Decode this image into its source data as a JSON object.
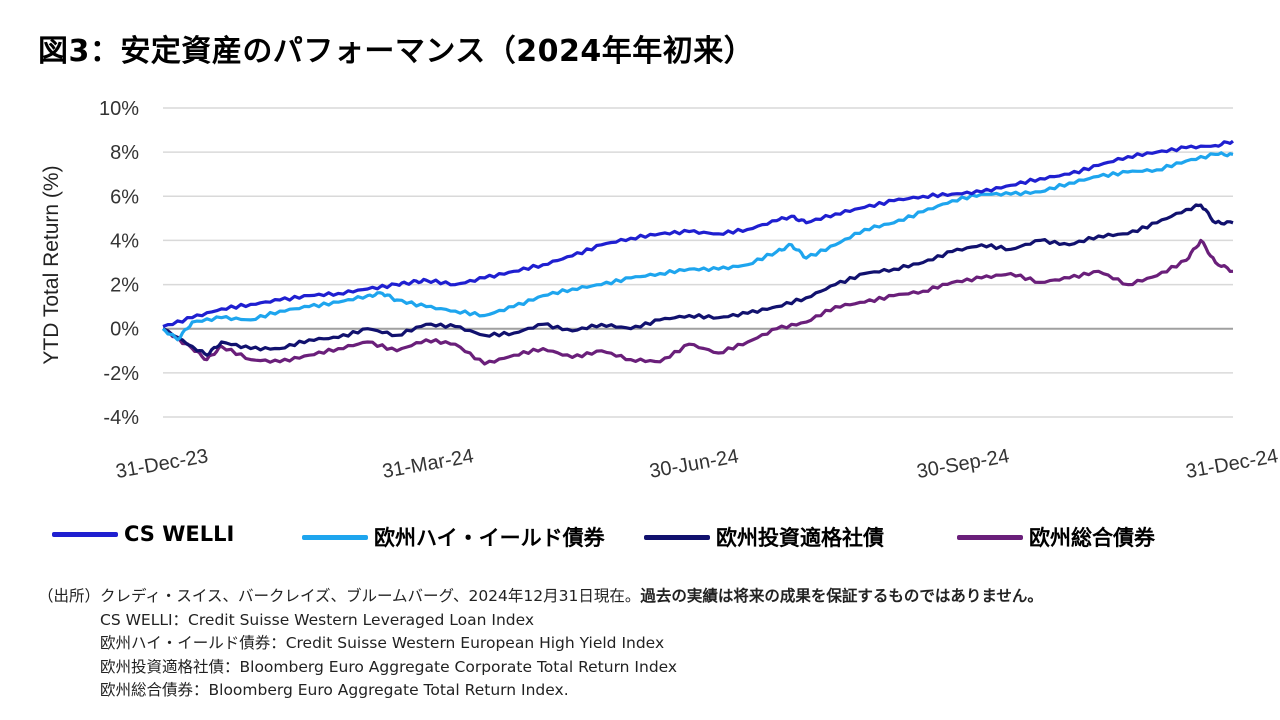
{
  "title": "図3：安定資産のパフォーマンス（2024年年初来）",
  "chart_data": {
    "type": "line",
    "ylabel": "YTD Total Return (%)",
    "y_ticks": [
      "10%",
      "8%",
      "6%",
      "4%",
      "2%",
      "0%",
      "-2%",
      "-4%"
    ],
    "y_tick_values": [
      10,
      8,
      6,
      4,
      2,
      0,
      -2,
      -4
    ],
    "ylim": [
      -4,
      10
    ],
    "x_ticks": [
      "31-Dec-23",
      "31-Mar-24",
      "30-Jun-24",
      "30-Sep-24",
      "31-Dec-24"
    ],
    "x_tick_days": [
      0,
      91,
      182,
      274,
      366
    ],
    "xlim_days": [
      0,
      366
    ],
    "grid": "horizontal",
    "legend_position": "bottom",
    "series": [
      {
        "name": "CS WELLI",
        "color": "#1f1fd0",
        "x": [
          0,
          10,
          20,
          30,
          40,
          50,
          60,
          70,
          80,
          85,
          90,
          100,
          110,
          120,
          130,
          140,
          150,
          160,
          170,
          180,
          190,
          200,
          210,
          215,
          220,
          230,
          240,
          250,
          260,
          270,
          280,
          290,
          300,
          310,
          320,
          330,
          340,
          350,
          360,
          366
        ],
        "y": [
          0.1,
          0.5,
          0.9,
          1.1,
          1.3,
          1.5,
          1.6,
          1.8,
          2.0,
          2.1,
          2.2,
          2.0,
          2.3,
          2.6,
          2.9,
          3.3,
          3.8,
          4.1,
          4.3,
          4.4,
          4.3,
          4.5,
          4.9,
          5.1,
          4.8,
          5.2,
          5.5,
          5.8,
          6.0,
          6.1,
          6.2,
          6.5,
          6.8,
          7.0,
          7.4,
          7.8,
          8.0,
          8.2,
          8.3,
          8.5
        ]
      },
      {
        "name": "欧州ハイ・イールド債券",
        "color": "#1ea5ee",
        "x": [
          0,
          5,
          10,
          20,
          30,
          40,
          50,
          60,
          70,
          75,
          80,
          90,
          100,
          110,
          120,
          130,
          140,
          150,
          160,
          170,
          180,
          190,
          200,
          210,
          215,
          220,
          230,
          240,
          250,
          260,
          270,
          280,
          290,
          300,
          310,
          320,
          330,
          340,
          350,
          360,
          366
        ],
        "y": [
          0.0,
          -0.5,
          0.3,
          0.5,
          0.4,
          0.8,
          1.0,
          1.2,
          1.5,
          1.6,
          1.3,
          1.0,
          0.8,
          0.6,
          1.0,
          1.5,
          1.8,
          2.0,
          2.3,
          2.5,
          2.7,
          2.7,
          2.9,
          3.5,
          3.8,
          3.2,
          3.8,
          4.5,
          4.8,
          5.3,
          5.8,
          6.1,
          6.1,
          6.2,
          6.6,
          6.9,
          7.1,
          7.2,
          7.6,
          7.9,
          7.9
        ]
      },
      {
        "name": "欧州投資適格社債",
        "color": "#11116e",
        "x": [
          0,
          10,
          15,
          20,
          30,
          40,
          50,
          60,
          70,
          80,
          90,
          100,
          110,
          120,
          130,
          140,
          150,
          160,
          170,
          180,
          190,
          200,
          210,
          220,
          230,
          240,
          250,
          260,
          270,
          280,
          290,
          300,
          310,
          320,
          330,
          340,
          350,
          355,
          360,
          366
        ],
        "y": [
          0.0,
          -0.8,
          -1.2,
          -0.6,
          -0.9,
          -0.9,
          -0.5,
          -0.4,
          0.0,
          -0.3,
          0.2,
          0.1,
          -0.3,
          -0.2,
          0.2,
          -0.1,
          0.2,
          0.0,
          0.4,
          0.6,
          0.5,
          0.7,
          1.0,
          1.4,
          2.0,
          2.5,
          2.7,
          3.0,
          3.5,
          3.8,
          3.6,
          4.0,
          3.8,
          4.2,
          4.3,
          4.8,
          5.4,
          5.6,
          4.8,
          4.8
        ]
      },
      {
        "name": "欧州総合債券",
        "color": "#6a1f7a",
        "x": [
          0,
          10,
          15,
          20,
          30,
          40,
          50,
          60,
          70,
          80,
          90,
          100,
          110,
          120,
          130,
          140,
          150,
          160,
          170,
          180,
          190,
          200,
          210,
          220,
          230,
          240,
          250,
          260,
          270,
          280,
          290,
          300,
          310,
          320,
          330,
          340,
          350,
          355,
          360,
          366
        ],
        "y": [
          0.0,
          -0.9,
          -1.4,
          -0.8,
          -1.4,
          -1.5,
          -1.2,
          -0.9,
          -0.6,
          -1.0,
          -0.5,
          -0.7,
          -1.6,
          -1.2,
          -0.9,
          -1.3,
          -1.0,
          -1.4,
          -1.5,
          -0.7,
          -1.1,
          -0.6,
          0.0,
          0.3,
          1.0,
          1.2,
          1.5,
          1.7,
          2.1,
          2.3,
          2.5,
          2.1,
          2.3,
          2.6,
          2.0,
          2.4,
          3.1,
          4.0,
          3.0,
          2.6
        ]
      }
    ]
  },
  "source": {
    "line1_prefix": "（出所）",
    "line1_text": "クレディ・スイス、バークレイズ、ブルームバーグ、2024年12月31日現在。",
    "line1_bold": "過去の実績は将来の成果を保証するものではありません。",
    "line2": "CS WELLI：Credit Suisse Western Leveraged Loan Index",
    "line3": "欧州ハイ・イールド債券：Credit Suisse Western European High Yield Index",
    "line4": "欧州投資適格社債：Bloomberg Euro Aggregate Corporate Total Return Index",
    "line5": "欧州総合債券：Bloomberg Euro Aggregate Total Return Index."
  }
}
